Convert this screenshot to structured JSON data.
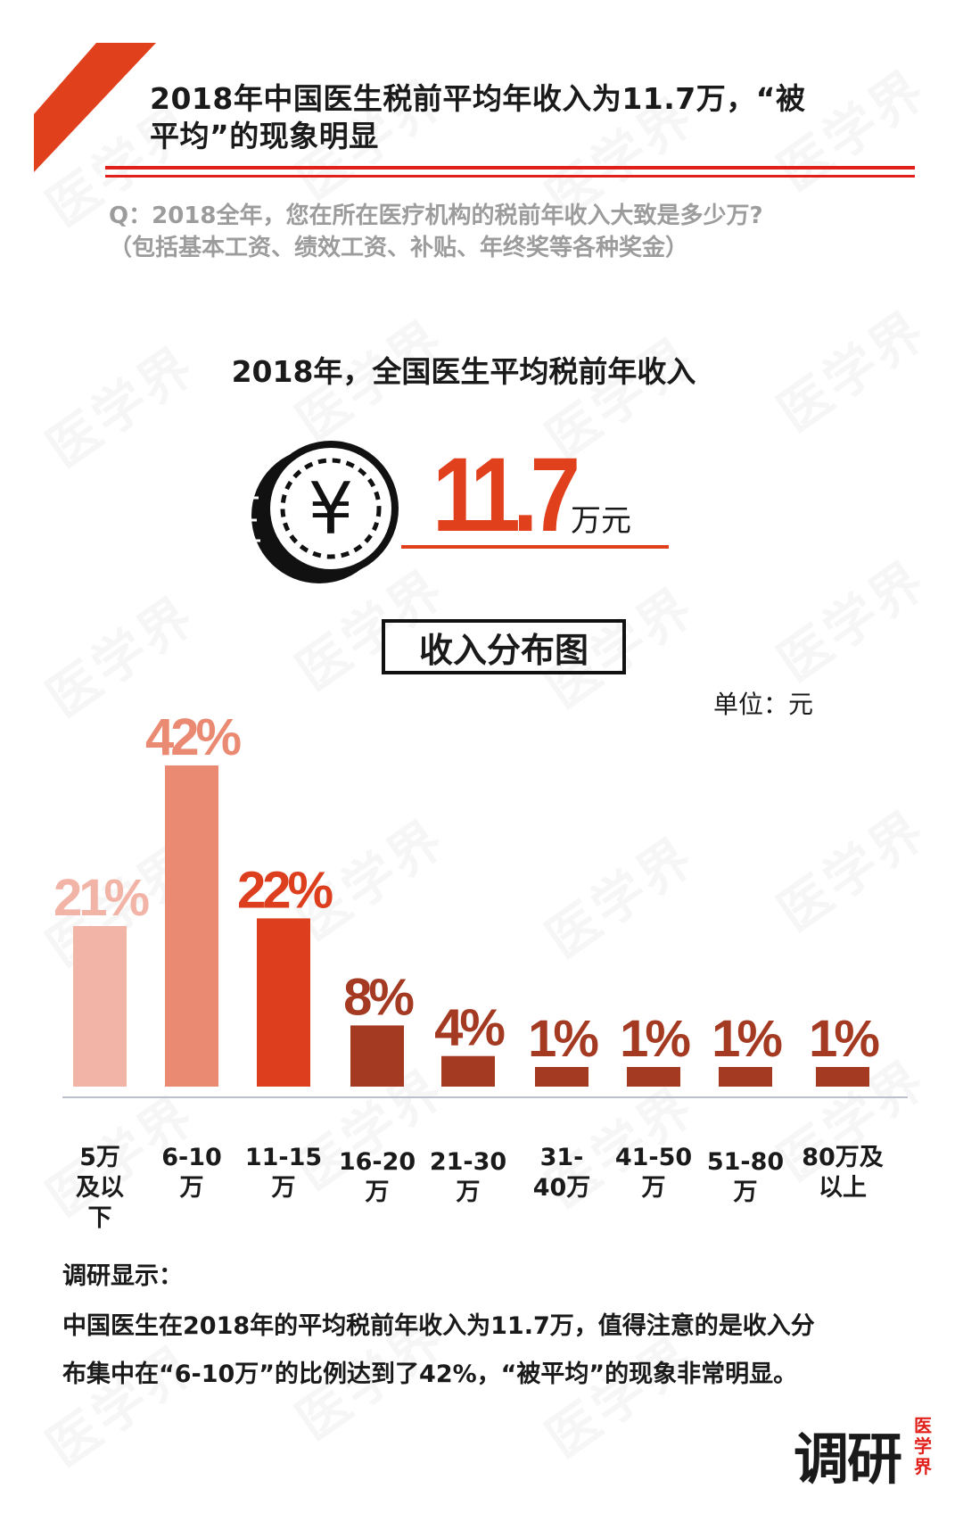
{
  "header": {
    "title_line1": "2018年中国医生税前平均年收入为11.7万，“被",
    "title_line2": "平均”的现象明显",
    "accent_color": "#e1201b"
  },
  "question": {
    "line1": "Q：2018全年，您在所在医疗机构的税前年收入大致是多少万?",
    "line2": "（包括基本工资、绩效工资、补贴、年终奖等各种奖金）"
  },
  "average": {
    "heading": "2018年，全国医生平均税前年收入",
    "value": "11.7",
    "unit": "万元",
    "coin_icon": "yen-coin-icon",
    "value_color": "#e1401c"
  },
  "distribution": {
    "title": "收入分布图",
    "unit_label": "单位：元"
  },
  "chart_data": {
    "type": "bar",
    "title": "收入分布图",
    "categories": [
      "5万\n及以\n下",
      "6-10\n万",
      "11-15\n万",
      "16-20\n万",
      "21-30\n万",
      "31-\n40万",
      "41-50\n万",
      "51-80\n万",
      "80万及\n以上"
    ],
    "values": [
      21,
      42,
      22,
      8,
      4,
      1,
      1,
      1,
      1
    ],
    "value_labels": [
      "21%",
      "42%",
      "22%",
      "8%",
      "4%",
      "1%",
      "1%",
      "1%",
      "1%"
    ],
    "colors": [
      "#f2b4a6",
      "#eb8a72",
      "#dc3e1e",
      "#a53a22",
      "#a53a22",
      "#a53a22",
      "#a53a22",
      "#a53a22",
      "#a53a22"
    ],
    "label_colors": [
      "#f2b4a6",
      "#eb8a72",
      "#dc3e1e",
      "#a53a22",
      "#a53a22",
      "#a53a22",
      "#a53a22",
      "#a53a22",
      "#a53a22"
    ],
    "ylim": [
      0,
      42
    ],
    "grid": false
  },
  "summary": {
    "heading": "调研显示：",
    "line1": "中国医生在2018年的平均税前年收入为11.7万，值得注意的是收入分",
    "line2": "布集中在“6-10万”的比例达到了42%，“被平均”的现象非常明显。"
  },
  "logo": {
    "main": "调研",
    "side": "医学界"
  },
  "watermark": "医学界"
}
